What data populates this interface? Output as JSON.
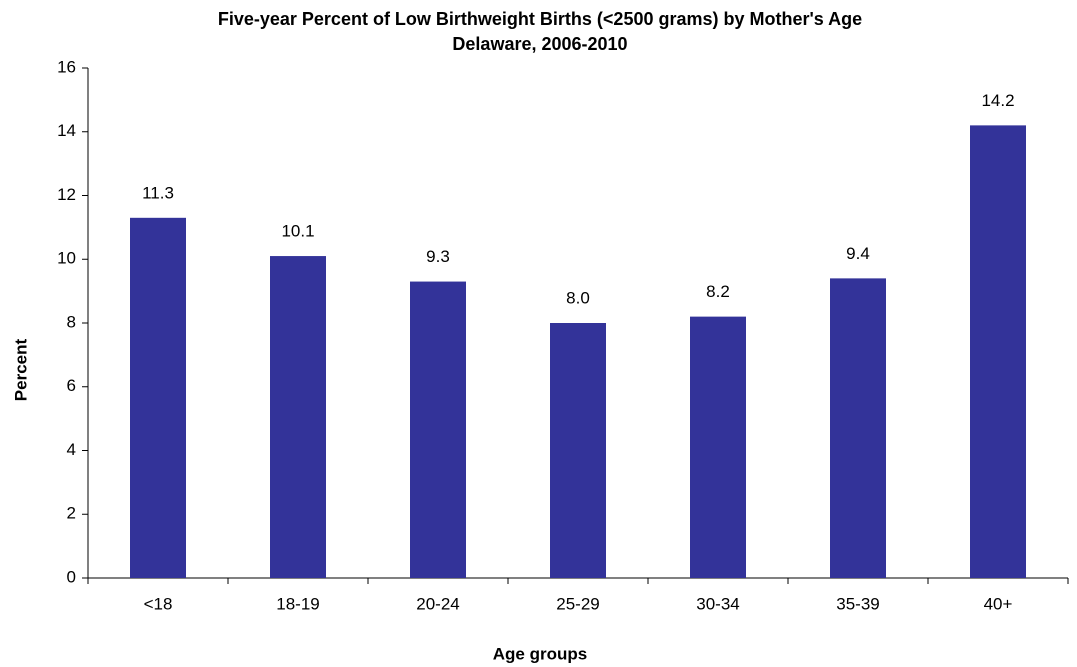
{
  "chart_data": {
    "type": "bar",
    "title": "Five-year Percent of Low Birthweight Births (<2500 grams) by Mother's Age",
    "subtitle": "Delaware, 2006-2010",
    "x_label": "Age groups",
    "y_label": "Percent",
    "categories": [
      "<18",
      "18-19",
      "20-24",
      "25-29",
      "30-34",
      "35-39",
      "40+"
    ],
    "values": [
      11.3,
      10.1,
      9.3,
      8.0,
      8.2,
      9.4,
      14.2
    ],
    "value_labels": [
      "11.3",
      "10.1",
      "9.3",
      "8.0",
      "8.2",
      "9.4",
      "14.2"
    ],
    "color": "#333399",
    "ylim": [
      0,
      16
    ],
    "yticks": [
      0,
      2,
      4,
      6,
      8,
      10,
      12,
      14,
      16
    ],
    "grid": false
  }
}
